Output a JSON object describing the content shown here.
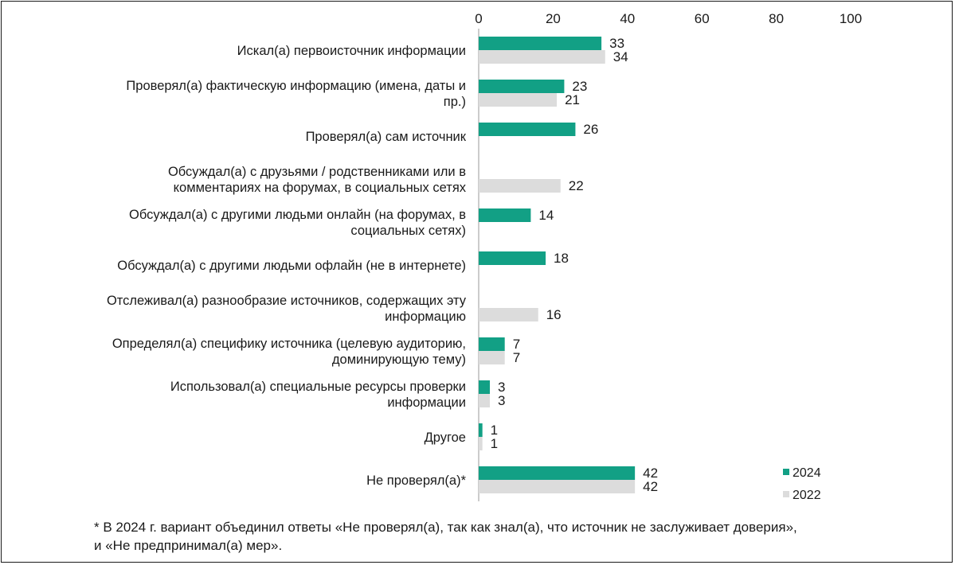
{
  "chart_data": {
    "type": "bar",
    "orientation": "horizontal",
    "xlim": [
      0,
      100
    ],
    "xticks": [
      "0",
      "20",
      "40",
      "60",
      "80",
      "100"
    ],
    "grid": false,
    "legend_position": "bottom-right",
    "categories": [
      [
        "Искал(а) первоисточник информации"
      ],
      [
        "Проверял(а) фактическую информацию (имена, даты и",
        "пр.)"
      ],
      [
        "Проверял(а) сам источник"
      ],
      [
        "Обсуждал(а) с друзьями / родственниками или в",
        "комментариях на форумах, в социальных сетях"
      ],
      [
        "Обсуждал(а) с другими людьми онлайн (на форумах, в",
        "социальных сетях)"
      ],
      [
        "Обсуждал(а) с другими людьми офлайн (не в интернете)"
      ],
      [
        "Отслеживал(а) разнообразие источников, содержащих эту",
        "информацию"
      ],
      [
        "Определял(а) специфику источника (целевую аудиторию,",
        "доминирующую тему)"
      ],
      [
        "Использовал(а) специальные ресурсы проверки",
        "информации"
      ],
      [
        "Другое"
      ],
      [
        "Не проверял(а)*"
      ]
    ],
    "series": [
      {
        "name": "2024",
        "color": "#12a085",
        "values": [
          33,
          23,
          26,
          null,
          14,
          18,
          null,
          7,
          3,
          1,
          42
        ]
      },
      {
        "name": "2022",
        "color": "#dcdcdc",
        "values": [
          34,
          21,
          null,
          22,
          null,
          null,
          16,
          7,
          3,
          1,
          42
        ]
      }
    ]
  },
  "footnote": {
    "line1": "* В 2024 г. вариант объединил ответы «Не проверял(а), так как знал(а), что источник не заслуживает доверия»,",
    "line2": "и «Не предпринимал(а) мер»."
  }
}
